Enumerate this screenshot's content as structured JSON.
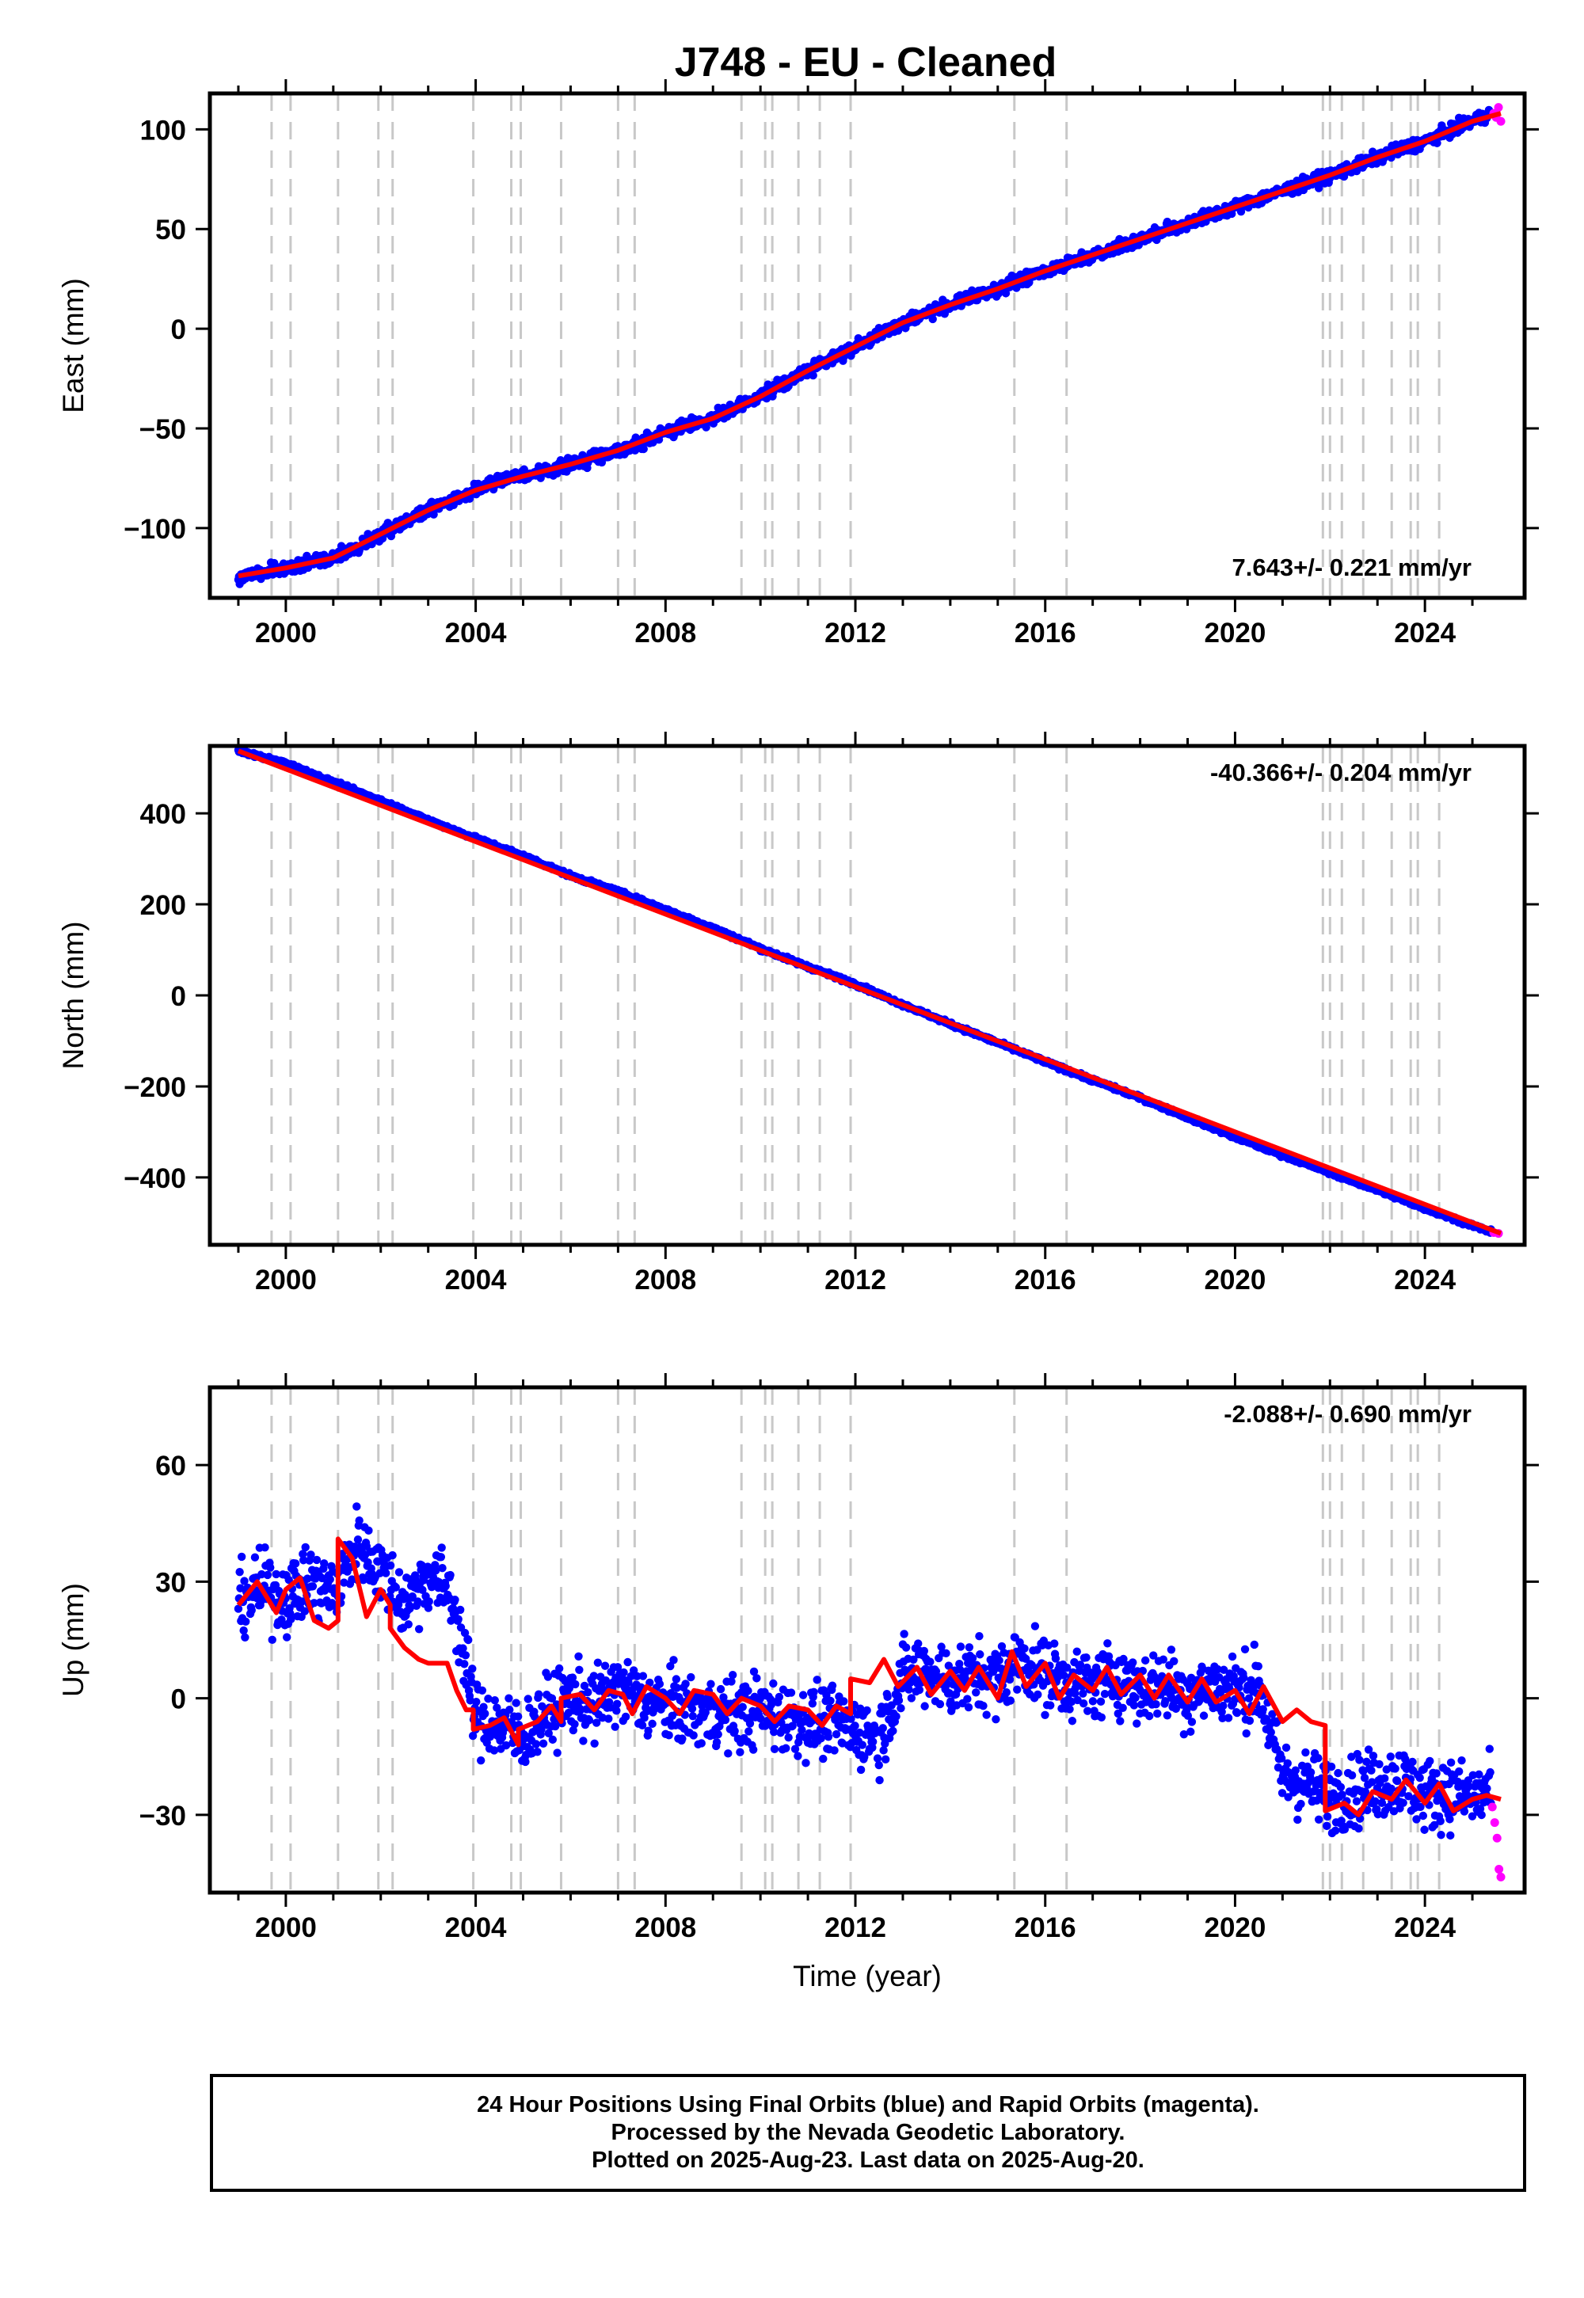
{
  "title": "J748  - EU - Cleaned",
  "colors": {
    "final": "#0000ff",
    "rapid": "#ff00ff",
    "model": "#ff0000",
    "offset_line": "#c8c8c8",
    "frame": "#000000"
  },
  "chart_data": [
    {
      "type": "scatter",
      "component": "East",
      "ylabel": "East (mm)",
      "xlabel": "",
      "xlim": [
        1998.4,
        2026.1
      ],
      "ylim": [
        -135,
        118
      ],
      "xticks": [
        2000,
        2004,
        2008,
        2012,
        2016,
        2020,
        2024
      ],
      "yticks": [
        -100,
        -50,
        0,
        50,
        100
      ],
      "ytick_labels": [
        "−100",
        "−50",
        "0",
        "50",
        "100"
      ],
      "rate_label": "7.643+/- 0.221 mm/yr",
      "rate_position": "bottom-right",
      "series": [
        {
          "name": "Final Orbits",
          "color": "#0000ff",
          "x": [
            1999.0,
            1999.5,
            2000.0,
            2000.5,
            2001.0,
            2001.5,
            2002.0,
            2002.5,
            2003.0,
            2003.5,
            2004.0,
            2004.5,
            2005.0,
            2005.5,
            2006.0,
            2006.5,
            2007.0,
            2007.5,
            2008.0,
            2008.5,
            2009.0,
            2009.5,
            2010.0,
            2010.5,
            2011.0,
            2011.5,
            2012.0,
            2012.5,
            2013.0,
            2013.5,
            2014.0,
            2014.5,
            2015.0,
            2015.5,
            2016.0,
            2016.5,
            2017.0,
            2017.5,
            2018.0,
            2018.5,
            2019.0,
            2019.5,
            2020.0,
            2020.5,
            2021.0,
            2021.5,
            2022.0,
            2022.5,
            2023.0,
            2023.5,
            2024.0,
            2024.5,
            2025.0,
            2025.4
          ],
          "y": [
            -124,
            -122,
            -120,
            -117,
            -115,
            -110,
            -103,
            -97,
            -91,
            -86,
            -81,
            -76,
            -74,
            -71,
            -68,
            -64,
            -61,
            -57,
            -52,
            -48,
            -45,
            -40,
            -34,
            -27,
            -21,
            -15,
            -9,
            -3,
            3,
            8,
            12,
            16,
            20,
            24,
            29,
            33,
            37,
            41,
            45,
            49,
            53,
            57,
            61,
            65,
            69,
            73,
            77,
            81,
            86,
            90,
            94,
            99,
            104,
            108
          ]
        },
        {
          "name": "Rapid Orbits",
          "color": "#ff00ff",
          "x": [
            2025.45,
            2025.5,
            2025.55,
            2025.6
          ],
          "y": [
            108,
            106,
            111,
            104
          ]
        }
      ],
      "model": {
        "x": [
          1999.0,
          2000.0,
          2001.0,
          2002.0,
          2003.0,
          2004.0,
          2005.0,
          2006.0,
          2007.0,
          2008.0,
          2009.0,
          2010.0,
          2011.0,
          2012.0,
          2013.0,
          2014.0,
          2015.0,
          2016.0,
          2017.0,
          2018.0,
          2019.0,
          2020.0,
          2021.0,
          2022.0,
          2023.0,
          2024.0,
          2025.0,
          2025.6
        ],
        "y": [
          -124,
          -120,
          -115,
          -103,
          -91,
          -81,
          -74,
          -68,
          -61,
          -52,
          -45,
          -34,
          -21,
          -9,
          3,
          12,
          20,
          29,
          37,
          45,
          53,
          61,
          69,
          77,
          86,
          94,
          104,
          108
        ]
      }
    },
    {
      "type": "scatter",
      "component": "North",
      "ylabel": "North (mm)",
      "xlabel": "",
      "xlim": [
        1998.4,
        2026.1
      ],
      "ylim": [
        -548,
        548
      ],
      "xticks": [
        2000,
        2004,
        2008,
        2012,
        2016,
        2020,
        2024
      ],
      "yticks": [
        -400,
        -200,
        0,
        200,
        400
      ],
      "ytick_labels": [
        "−400",
        "−200",
        "0",
        "200",
        "400"
      ],
      "rate_label": "-40.366+/- 0.204 mm/yr",
      "rate_position": "top-right",
      "series": [
        {
          "name": "Final Orbits",
          "color": "#0000ff",
          "x": [
            1999.0,
            2000.0,
            2001.0,
            2002.0,
            2003.0,
            2004.0,
            2005.0,
            2006.0,
            2007.0,
            2008.0,
            2009.0,
            2010.0,
            2011.0,
            2012.0,
            2013.0,
            2014.0,
            2015.0,
            2016.0,
            2017.0,
            2018.0,
            2019.0,
            2020.0,
            2021.0,
            2022.0,
            2023.0,
            2024.0,
            2025.0,
            2025.4
          ],
          "y": [
            537,
            510,
            468,
            428,
            385,
            345,
            307,
            263,
            228,
            188,
            148,
            103,
            63,
            25,
            -20,
            -63,
            -104,
            -146,
            -186,
            -225,
            -268,
            -311,
            -351,
            -389,
            -428,
            -468,
            -505,
            -520
          ]
        },
        {
          "name": "Rapid Orbits",
          "color": "#ff00ff",
          "x": [
            2025.45,
            2025.55
          ],
          "y": [
            -521,
            -523
          ]
        }
      ],
      "model": {
        "x": [
          1999.0,
          2025.6
        ],
        "y": [
          537,
          -523
        ]
      }
    },
    {
      "type": "scatter",
      "component": "Up",
      "ylabel": "Up (mm)",
      "xlabel": "Time (year)",
      "xlim": [
        1998.4,
        2026.1
      ],
      "ylim": [
        -50,
        80
      ],
      "xticks": [
        2000,
        2004,
        2008,
        2012,
        2016,
        2020,
        2024
      ],
      "yticks": [
        -30,
        0,
        30,
        60
      ],
      "ytick_labels": [
        "−30",
        "0",
        "30",
        "60"
      ],
      "rate_label": "-2.088+/- 0.690 mm/yr",
      "rate_position": "top-right",
      "series": [
        {
          "name": "Final Orbits",
          "color": "#0000ff",
          "x": [
            1999.0,
            1999.5,
            2000.0,
            2000.5,
            2001.0,
            2001.5,
            2002.0,
            2002.5,
            2003.0,
            2003.5,
            2004.0,
            2004.5,
            2005.0,
            2005.5,
            2006.0,
            2006.5,
            2007.0,
            2007.5,
            2008.0,
            2008.5,
            2009.0,
            2009.5,
            2010.0,
            2010.5,
            2011.0,
            2011.5,
            2012.0,
            2012.5,
            2013.0,
            2013.5,
            2014.0,
            2014.5,
            2015.0,
            2015.5,
            2016.0,
            2016.5,
            2017.0,
            2017.5,
            2018.0,
            2018.5,
            2019.0,
            2019.5,
            2020.0,
            2020.5,
            2021.0,
            2021.5,
            2022.0,
            2022.5,
            2023.0,
            2023.5,
            2024.0,
            2024.5,
            2025.0,
            2025.4
          ],
          "y": [
            25,
            28,
            26,
            30,
            27,
            40,
            33,
            24,
            32,
            27,
            -5,
            -7,
            -10,
            -4,
            0,
            -2,
            3,
            -1,
            -2,
            -3,
            -4,
            -4,
            -3,
            -5,
            -6,
            -6,
            -8,
            -10,
            5,
            8,
            4,
            6,
            5,
            10,
            6,
            4,
            3,
            6,
            2,
            4,
            1,
            3,
            2,
            3,
            -20,
            -22,
            -25,
            -24,
            -22,
            -21,
            -25,
            -24,
            -26,
            -24
          ]
        },
        {
          "name": "Rapid Orbits",
          "color": "#ff00ff",
          "x": [
            2025.42,
            2025.47,
            2025.52,
            2025.56,
            2025.6
          ],
          "y": [
            -28,
            -32,
            -36,
            -44,
            -46
          ]
        }
      ],
      "model": {
        "x": [
          1999.0,
          1999.4,
          1999.8,
          2000.0,
          2000.3,
          2000.6,
          2000.9,
          2001.1,
          2001.1,
          2001.4,
          2001.7,
          2002.0,
          2002.2,
          2002.2,
          2002.5,
          2002.8,
          2003.0,
          2003.4,
          2003.6,
          2003.8,
          2003.95,
          2003.95,
          2004.3,
          2004.6,
          2004.9,
          2004.9,
          2005.3,
          2005.6,
          2005.8,
          2005.8,
          2006.2,
          2006.5,
          2006.8,
          2007.1,
          2007.3,
          2007.6,
          2008.0,
          2008.3,
          2008.6,
          2009.0,
          2009.3,
          2009.6,
          2010.0,
          2010.3,
          2010.6,
          2011.0,
          2011.3,
          2011.6,
          2011.9,
          2011.9,
          2012.3,
          2012.6,
          2012.9,
          2013.3,
          2013.6,
          2014.0,
          2014.3,
          2014.6,
          2015.0,
          2015.3,
          2015.6,
          2016.0,
          2016.3,
          2016.6,
          2017.0,
          2017.3,
          2017.6,
          2018.0,
          2018.3,
          2018.6,
          2019.0,
          2019.3,
          2019.6,
          2020.0,
          2020.3,
          2020.6,
          2021.0,
          2021.3,
          2021.6,
          2021.9,
          2021.9,
          2022.3,
          2022.6,
          2022.9,
          2023.3,
          2023.6,
          2024.0,
          2024.3,
          2024.6,
          2025.0,
          2025.3,
          2025.6
        ],
        "y": [
          24,
          30,
          22,
          28,
          31,
          20,
          18,
          20,
          41,
          36,
          21,
          28,
          24,
          18,
          13,
          10,
          9,
          9,
          2,
          -3,
          -3,
          -8,
          -7,
          -5,
          -12,
          -8,
          -6,
          -2,
          -6,
          0,
          1,
          -3,
          2,
          1,
          -4,
          3,
          0,
          -4,
          2,
          1,
          -4,
          0,
          -2,
          -6,
          -2,
          -3,
          -7,
          -2,
          -4,
          5,
          4,
          10,
          3,
          8,
          1,
          7,
          2,
          8,
          0,
          12,
          3,
          9,
          0,
          6,
          2,
          8,
          1,
          6,
          0,
          6,
          -1,
          5,
          -1,
          2,
          -4,
          3,
          -6,
          -3,
          -6,
          -7,
          -29,
          -27,
          -30,
          -24,
          -26,
          -21,
          -27,
          -22,
          -29,
          -26,
          -25,
          -26
        ]
      }
    }
  ],
  "offset_years": [
    1999.7,
    2000.1,
    2001.1,
    2001.95,
    2002.25,
    2003.95,
    2004.75,
    2004.95,
    2005.8,
    2007.0,
    2007.35,
    2009.6,
    2010.1,
    2010.25,
    2010.8,
    2011.25,
    2011.9,
    2015.35,
    2016.45,
    2021.85,
    2022.0,
    2022.25,
    2022.7,
    2023.3,
    2023.7,
    2023.85,
    2024.3
  ],
  "footer": {
    "line1": "24 Hour Positions Using Final Orbits (blue) and Rapid Orbits (magenta).",
    "line2": "Processed by the Nevada Geodetic Laboratory.",
    "line3": "Plotted on 2025-Aug-23. Last data on 2025-Aug-20."
  }
}
